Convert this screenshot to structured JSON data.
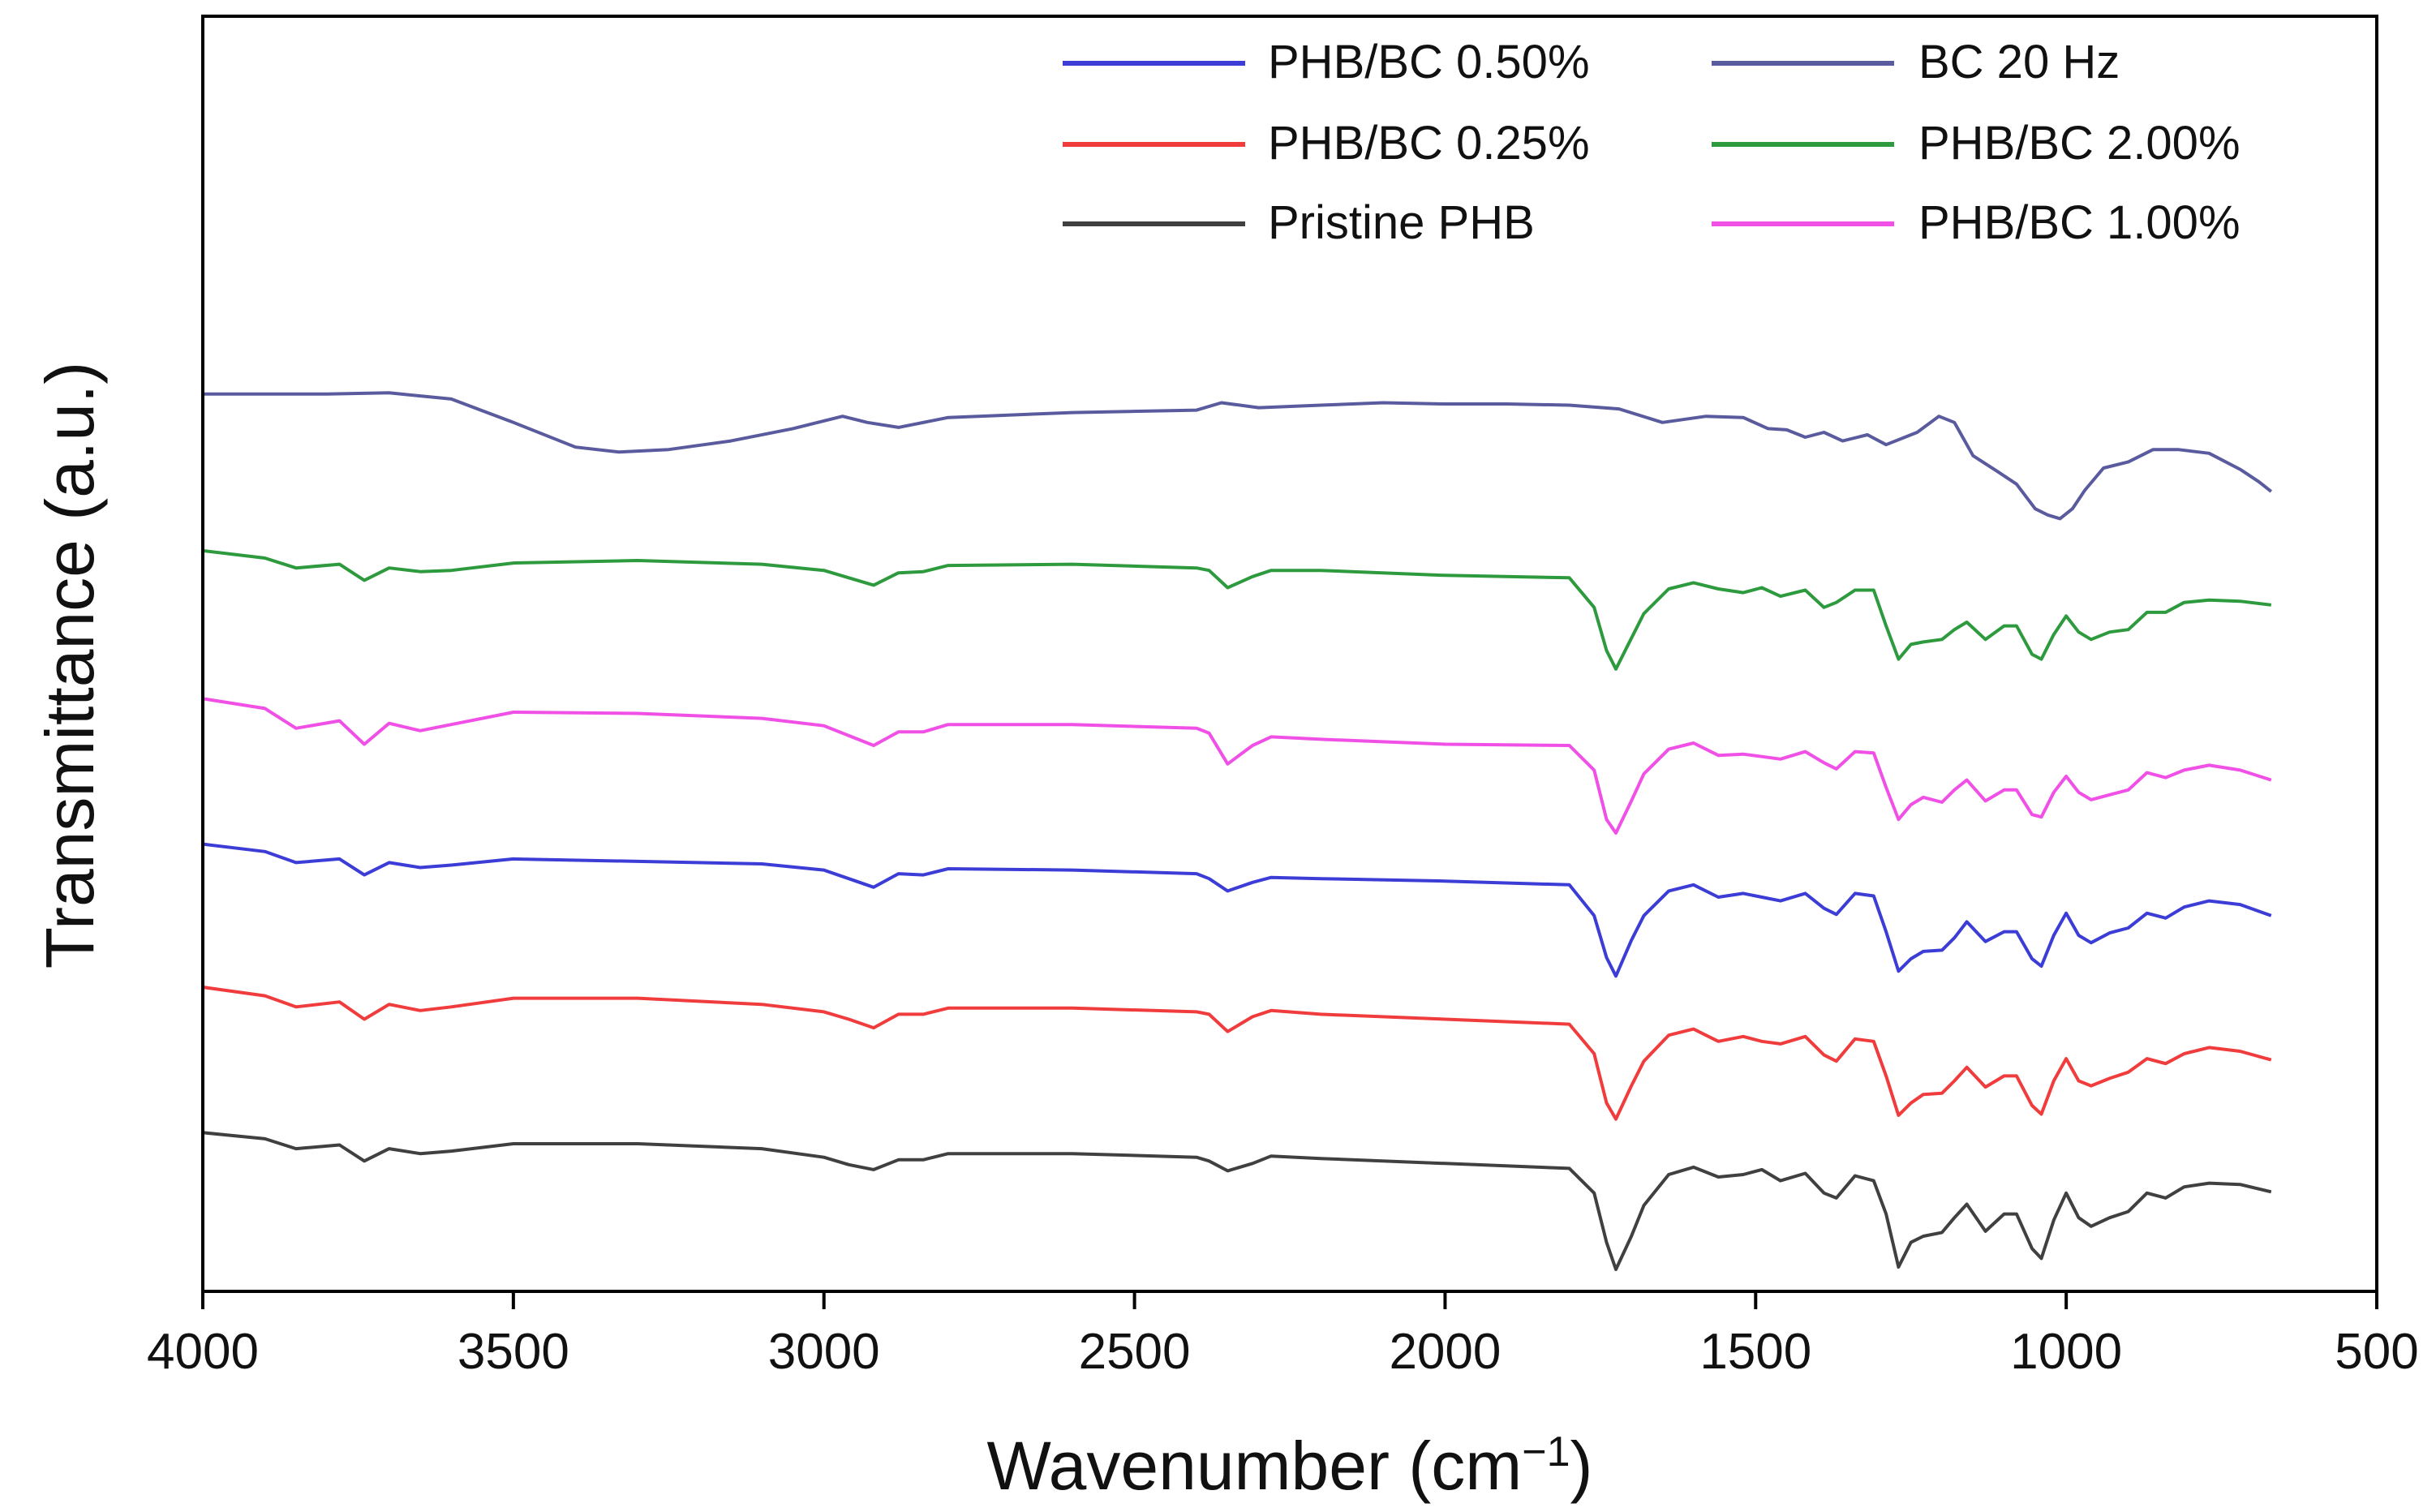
{
  "chart_data": {
    "type": "line",
    "title": "",
    "xlabel": "Wavenumber (cm",
    "xlabel_unit_exponent": "−1",
    "xlabel_close": ")",
    "ylabel": "Transmittance (a.u.)",
    "xlim": [
      4000,
      500
    ],
    "x_reversed": true,
    "xticks": [
      "4000",
      "3500",
      "3000",
      "2500",
      "2000",
      "1500",
      "1000",
      "500"
    ],
    "ylim": [
      0,
      100
    ],
    "y_ticks_shown": false,
    "grid": false,
    "legend_position": "top-right",
    "legend_order": [
      "PHB/BC 0.50%",
      "PHB/BC 0.25%",
      "Pristine PHB",
      "BC 20 Hz",
      "PHB/BC 2.00%",
      "PHB/BC 1.00%"
    ],
    "series": [
      {
        "name": "BC 20 Hz",
        "color": "#5a5a9e",
        "x": [
          4000,
          3900,
          3800,
          3700,
          3600,
          3500,
          3400,
          3330,
          3250,
          3150,
          3050,
          2970,
          2930,
          2880,
          2800,
          2600,
          2400,
          2360,
          2300,
          2200,
          2100,
          2000,
          1900,
          1800,
          1720,
          1650,
          1580,
          1520,
          1480,
          1450,
          1420,
          1390,
          1360,
          1320,
          1290,
          1240,
          1205,
          1180,
          1150,
          1110,
          1080,
          1050,
          1030,
          1010,
          990,
          970,
          940,
          900,
          860,
          820,
          770,
          720,
          690,
          670
        ],
        "y": [
          73.3,
          73.3,
          73.3,
          73.4,
          72.9,
          71,
          69,
          68.6,
          68.8,
          69.5,
          70.5,
          71.5,
          71,
          70.6,
          71.4,
          71.8,
          72,
          72.6,
          72.2,
          72.4,
          72.6,
          72.5,
          72.5,
          72.4,
          72.1,
          71,
          71.5,
          71.4,
          70.5,
          70.4,
          69.8,
          70.2,
          69.5,
          70,
          69.2,
          70.2,
          71.5,
          71,
          68.3,
          67,
          66,
          64,
          63.5,
          63.2,
          64,
          65.5,
          67.3,
          67.8,
          68.8,
          68.8,
          68.5,
          67.2,
          66.2,
          65.4
        ]
      },
      {
        "name": "PHB/BC 2.00%",
        "color": "#2e9a3e",
        "x": [
          4000,
          3900,
          3850,
          3780,
          3740,
          3700,
          3650,
          3600,
          3500,
          3300,
          3100,
          3000,
          2960,
          2920,
          2880,
          2840,
          2800,
          2600,
          2400,
          2380,
          2350,
          2310,
          2280,
          2200,
          2000,
          1800,
          1760,
          1740,
          1725,
          1700,
          1680,
          1640,
          1600,
          1560,
          1520,
          1490,
          1460,
          1420,
          1390,
          1370,
          1340,
          1310,
          1290,
          1270,
          1250,
          1230,
          1200,
          1180,
          1160,
          1130,
          1100,
          1080,
          1055,
          1040,
          1020,
          1000,
          980,
          960,
          930,
          900,
          870,
          840,
          810,
          770,
          720,
          670
        ],
        "y": [
          60.6,
          60,
          59.2,
          59.5,
          58.2,
          59.2,
          58.9,
          59,
          59.6,
          59.8,
          59.5,
          59,
          58.4,
          57.8,
          58.8,
          58.9,
          59.4,
          59.5,
          59.2,
          59,
          57.6,
          58.5,
          59,
          59,
          58.6,
          58.4,
          56,
          52.5,
          51,
          53.5,
          55.5,
          57.5,
          58,
          57.5,
          57.2,
          57.6,
          56.9,
          57.4,
          56,
          56.4,
          57.4,
          57.4,
          54.5,
          51.8,
          53,
          53.2,
          53.4,
          54.2,
          54.8,
          53.4,
          54.5,
          54.5,
          52.2,
          51.8,
          53.8,
          55.3,
          54,
          53.4,
          54,
          54.2,
          55.6,
          55.6,
          56.4,
          56.6,
          56.5,
          56.2
        ]
      },
      {
        "name": "PHB/BC 1.00%",
        "color": "#f050e6",
        "x": [
          4000,
          3900,
          3850,
          3780,
          3740,
          3700,
          3650,
          3600,
          3500,
          3300,
          3100,
          3000,
          2960,
          2920,
          2880,
          2840,
          2800,
          2600,
          2400,
          2380,
          2350,
          2310,
          2280,
          2200,
          2000,
          1800,
          1760,
          1740,
          1725,
          1700,
          1680,
          1640,
          1600,
          1560,
          1520,
          1490,
          1460,
          1420,
          1390,
          1370,
          1340,
          1310,
          1290,
          1270,
          1250,
          1230,
          1200,
          1180,
          1160,
          1130,
          1100,
          1080,
          1055,
          1040,
          1020,
          1000,
          980,
          960,
          930,
          900,
          870,
          840,
          810,
          770,
          720,
          670
        ],
        "y": [
          48.6,
          47.8,
          46.2,
          46.8,
          44.9,
          46.6,
          46,
          46.5,
          47.5,
          47.4,
          47,
          46.4,
          45.6,
          44.8,
          45.9,
          45.9,
          46.5,
          46.5,
          46.2,
          45.8,
          43.3,
          44.8,
          45.5,
          45.3,
          44.9,
          44.8,
          42.8,
          38.8,
          37.7,
          40.3,
          42.5,
          44.5,
          45,
          44,
          44.1,
          43.9,
          43.7,
          44.3,
          43.4,
          42.9,
          44.3,
          44.2,
          41.4,
          38.8,
          40,
          40.6,
          40.2,
          41.2,
          42,
          40.3,
          41.2,
          41.2,
          39.2,
          39,
          41,
          42.3,
          41,
          40.4,
          40.8,
          41.2,
          42.6,
          42.2,
          42.8,
          43.2,
          42.8,
          42
        ]
      },
      {
        "name": "PHB/BC 0.50%",
        "color": "#3c3cd6",
        "x": [
          4000,
          3900,
          3850,
          3780,
          3740,
          3700,
          3650,
          3600,
          3500,
          3300,
          3100,
          3000,
          2960,
          2920,
          2880,
          2840,
          2800,
          2600,
          2400,
          2380,
          2350,
          2310,
          2280,
          2200,
          2000,
          1800,
          1760,
          1740,
          1725,
          1700,
          1680,
          1640,
          1600,
          1560,
          1520,
          1490,
          1460,
          1420,
          1390,
          1370,
          1340,
          1310,
          1290,
          1270,
          1250,
          1230,
          1200,
          1180,
          1160,
          1130,
          1100,
          1080,
          1055,
          1040,
          1020,
          1000,
          980,
          960,
          930,
          900,
          870,
          840,
          810,
          770,
          720,
          670
        ],
        "y": [
          36.8,
          36.2,
          35.3,
          35.6,
          34.3,
          35.3,
          34.9,
          35.1,
          35.6,
          35.4,
          35.2,
          34.7,
          34,
          33.3,
          34.4,
          34.3,
          34.8,
          34.7,
          34.4,
          34,
          33,
          33.7,
          34.1,
          34,
          33.8,
          33.5,
          31,
          27.6,
          26.1,
          29,
          31,
          33,
          33.5,
          32.5,
          32.8,
          32.5,
          32.2,
          32.8,
          31.6,
          31.1,
          32.8,
          32.6,
          29.7,
          26.5,
          27.5,
          28.1,
          28.2,
          29.2,
          30.5,
          28.9,
          29.7,
          29.7,
          27.5,
          26.9,
          29.4,
          31.2,
          29.4,
          28.8,
          29.6,
          30,
          31.2,
          30.8,
          31.7,
          32.2,
          31.9,
          31
        ]
      },
      {
        "name": "PHB/BC 0.25%",
        "color": "#f03c3c",
        "x": [
          4000,
          3900,
          3850,
          3780,
          3740,
          3700,
          3650,
          3600,
          3500,
          3300,
          3100,
          3000,
          2960,
          2920,
          2880,
          2840,
          2800,
          2600,
          2400,
          2380,
          2350,
          2310,
          2280,
          2200,
          2000,
          1800,
          1760,
          1740,
          1725,
          1700,
          1680,
          1640,
          1600,
          1560,
          1520,
          1490,
          1460,
          1420,
          1390,
          1370,
          1340,
          1310,
          1290,
          1270,
          1250,
          1230,
          1200,
          1180,
          1160,
          1130,
          1100,
          1080,
          1055,
          1040,
          1020,
          1000,
          980,
          960,
          930,
          900,
          870,
          840,
          810,
          770,
          720,
          670
        ],
        "y": [
          25.2,
          24.5,
          23.6,
          24,
          22.6,
          23.8,
          23.3,
          23.6,
          24.3,
          24.3,
          23.8,
          23.2,
          22.6,
          21.9,
          23,
          23,
          23.5,
          23.5,
          23.2,
          23,
          21.6,
          22.8,
          23.3,
          23,
          22.6,
          22.2,
          19.8,
          15.8,
          14.5,
          17.2,
          19.2,
          21.3,
          21.8,
          20.8,
          21.2,
          20.8,
          20.6,
          21.2,
          19.7,
          19.2,
          21,
          20.8,
          18,
          14.8,
          15.8,
          16.5,
          16.6,
          17.6,
          18.7,
          17.1,
          18,
          18,
          15.6,
          14.9,
          17.6,
          19.4,
          17.6,
          17.2,
          17.8,
          18.3,
          19.4,
          19,
          19.8,
          20.3,
          20,
          19.3
        ]
      },
      {
        "name": "Pristine PHB",
        "color": "#404040",
        "x": [
          4000,
          3900,
          3850,
          3780,
          3740,
          3700,
          3650,
          3600,
          3500,
          3300,
          3100,
          3000,
          2960,
          2920,
          2880,
          2840,
          2800,
          2600,
          2400,
          2380,
          2350,
          2310,
          2280,
          2200,
          2000,
          1800,
          1760,
          1740,
          1725,
          1700,
          1680,
          1640,
          1600,
          1560,
          1520,
          1490,
          1460,
          1420,
          1390,
          1370,
          1340,
          1310,
          1290,
          1270,
          1250,
          1230,
          1200,
          1180,
          1160,
          1130,
          1100,
          1080,
          1055,
          1040,
          1020,
          1000,
          980,
          960,
          930,
          900,
          870,
          840,
          810,
          770,
          720,
          670
        ],
        "y": [
          13.4,
          12.9,
          12.1,
          12.4,
          11.1,
          12.1,
          11.7,
          11.9,
          12.5,
          12.5,
          12.1,
          11.4,
          10.8,
          10.4,
          11.2,
          11.2,
          11.7,
          11.7,
          11.4,
          11.1,
          10.3,
          10.9,
          11.5,
          11.3,
          10.9,
          10.5,
          8.5,
          4.5,
          2.3,
          5,
          7.5,
          10,
          10.6,
          9.8,
          10,
          10.4,
          9.5,
          10.1,
          8.5,
          8.1,
          9.9,
          9.5,
          6.8,
          2.5,
          4.5,
          5,
          5.3,
          6.5,
          7.6,
          5.4,
          6.8,
          6.8,
          4,
          3.2,
          6.3,
          8.5,
          6.5,
          5.8,
          6.5,
          7,
          8.5,
          8.1,
          9,
          9.3,
          9.2,
          8.6
        ]
      }
    ]
  }
}
